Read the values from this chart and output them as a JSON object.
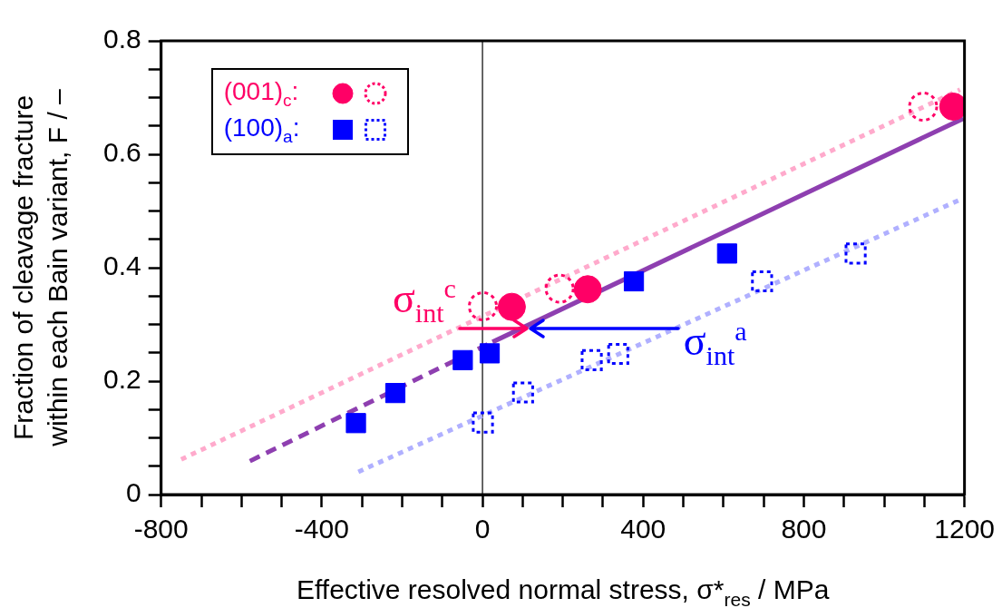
{
  "chart_data": {
    "type": "scatter",
    "xlabel": "Effective resolved normal stress, σ*$_{res}$ / MPa",
    "ylabel": "Fraction of cleavage fracture within each Bain variant, F / –",
    "xlim": [
      -800,
      1200
    ],
    "xticks": [
      -800,
      {
        "value": -700,
        "label": null
      },
      {
        "value": -600,
        "label": null
      },
      {
        "value": -500,
        "label": null
      },
      -400,
      {
        "value": -300,
        "label": null
      },
      {
        "value": -200,
        "label": null
      },
      {
        "value": -100,
        "label": null
      },
      0,
      {
        "value": 100,
        "label": null
      },
      {
        "value": 200,
        "label": null
      },
      {
        "value": 300,
        "label": null
      },
      400,
      {
        "value": 500,
        "label": null
      },
      {
        "value": 600,
        "label": null
      },
      {
        "value": 700,
        "label": null
      },
      800,
      {
        "value": 900,
        "label": null
      },
      {
        "value": 1000,
        "label": null
      },
      {
        "value": 1100,
        "label": null
      },
      1200
    ],
    "ylim": [
      0,
      0.8
    ],
    "yticks": [
      0,
      {
        "value": 0.05,
        "label": null
      },
      {
        "value": 0.1,
        "label": null
      },
      {
        "value": 0.15,
        "label": null
      },
      0.2,
      {
        "value": 0.25,
        "label": null
      },
      {
        "value": 0.3,
        "label": null
      },
      {
        "value": 0.35,
        "label": null
      },
      0.4,
      {
        "value": 0.45,
        "label": null
      },
      {
        "value": 0.5,
        "label": null
      },
      {
        "value": 0.55,
        "label": null
      },
      0.6,
      {
        "value": 0.65,
        "label": null
      },
      {
        "value": 0.7,
        "label": null
      },
      {
        "value": 0.75,
        "label": null
      },
      0.8
    ],
    "grid": false,
    "legend": "top left",
    "ref_lines": [
      {
        "axis": "x",
        "value": 0,
        "color": "#000000"
      }
    ],
    "annotations": [
      {
        "text": "σ$_{int}$$^{c}$",
        "x": -57,
        "y": 0.293
      },
      {
        "text": "σ$_{int}$$^{a}$",
        "x": 487,
        "y": 0.293
      }
    ],
    "series": [
      {
        "type": "line",
        "color": "#ffaacc",
        "line_style": "dotted",
        "marker": "none",
        "x": [
          -750,
          1189
        ],
        "values": [
          0.062,
          0.714
        ]
      },
      {
        "type": "line",
        "color": "#b0b0ff",
        "line_style": "dotted",
        "marker": "none",
        "x": [
          -309,
          1189
        ],
        "values": [
          0.04,
          0.52
        ]
      },
      {
        "type": "line",
        "color": "#8e3fb0",
        "line_style": "dashed",
        "marker": "none",
        "x": [
          -579,
          25
        ],
        "values": [
          0.059,
          0.269
        ]
      },
      {
        "type": "line",
        "color": "#8e3fb0",
        "line_style": "solid",
        "marker": "none",
        "x": [
          25,
          1197
        ],
        "values": [
          0.269,
          0.663
        ]
      },
      {
        "name": "(001)$_{c}$:",
        "color": "#ff0066",
        "marker": "circle",
        "line_style": "solid",
        "x": [
          73,
          262,
          1172
        ],
        "values": [
          0.331,
          0.362,
          0.684
        ]
      },
      {
        "color": "#ff0066",
        "marker": "circle",
        "line_style": "dotted",
        "x": [
          1,
          192,
          1097
        ],
        "values": [
          0.332,
          0.363,
          0.684
        ]
      },
      {
        "name": "(100)$_{a}$:",
        "color": "#0000ff",
        "marker": "square",
        "line_style": "solid",
        "x": [
          -315,
          -217,
          -49,
          18,
          377,
          609
        ],
        "values": [
          0.126,
          0.179,
          0.237,
          0.249,
          0.376,
          0.425
        ]
      },
      {
        "color": "#0000ff",
        "marker": "square",
        "line_style": "dotted",
        "x": [
          1,
          101,
          272,
          338,
          696,
          929
        ],
        "values": [
          0.127,
          0.18,
          0.237,
          0.248,
          0.376,
          0.425
        ]
      }
    ]
  }
}
